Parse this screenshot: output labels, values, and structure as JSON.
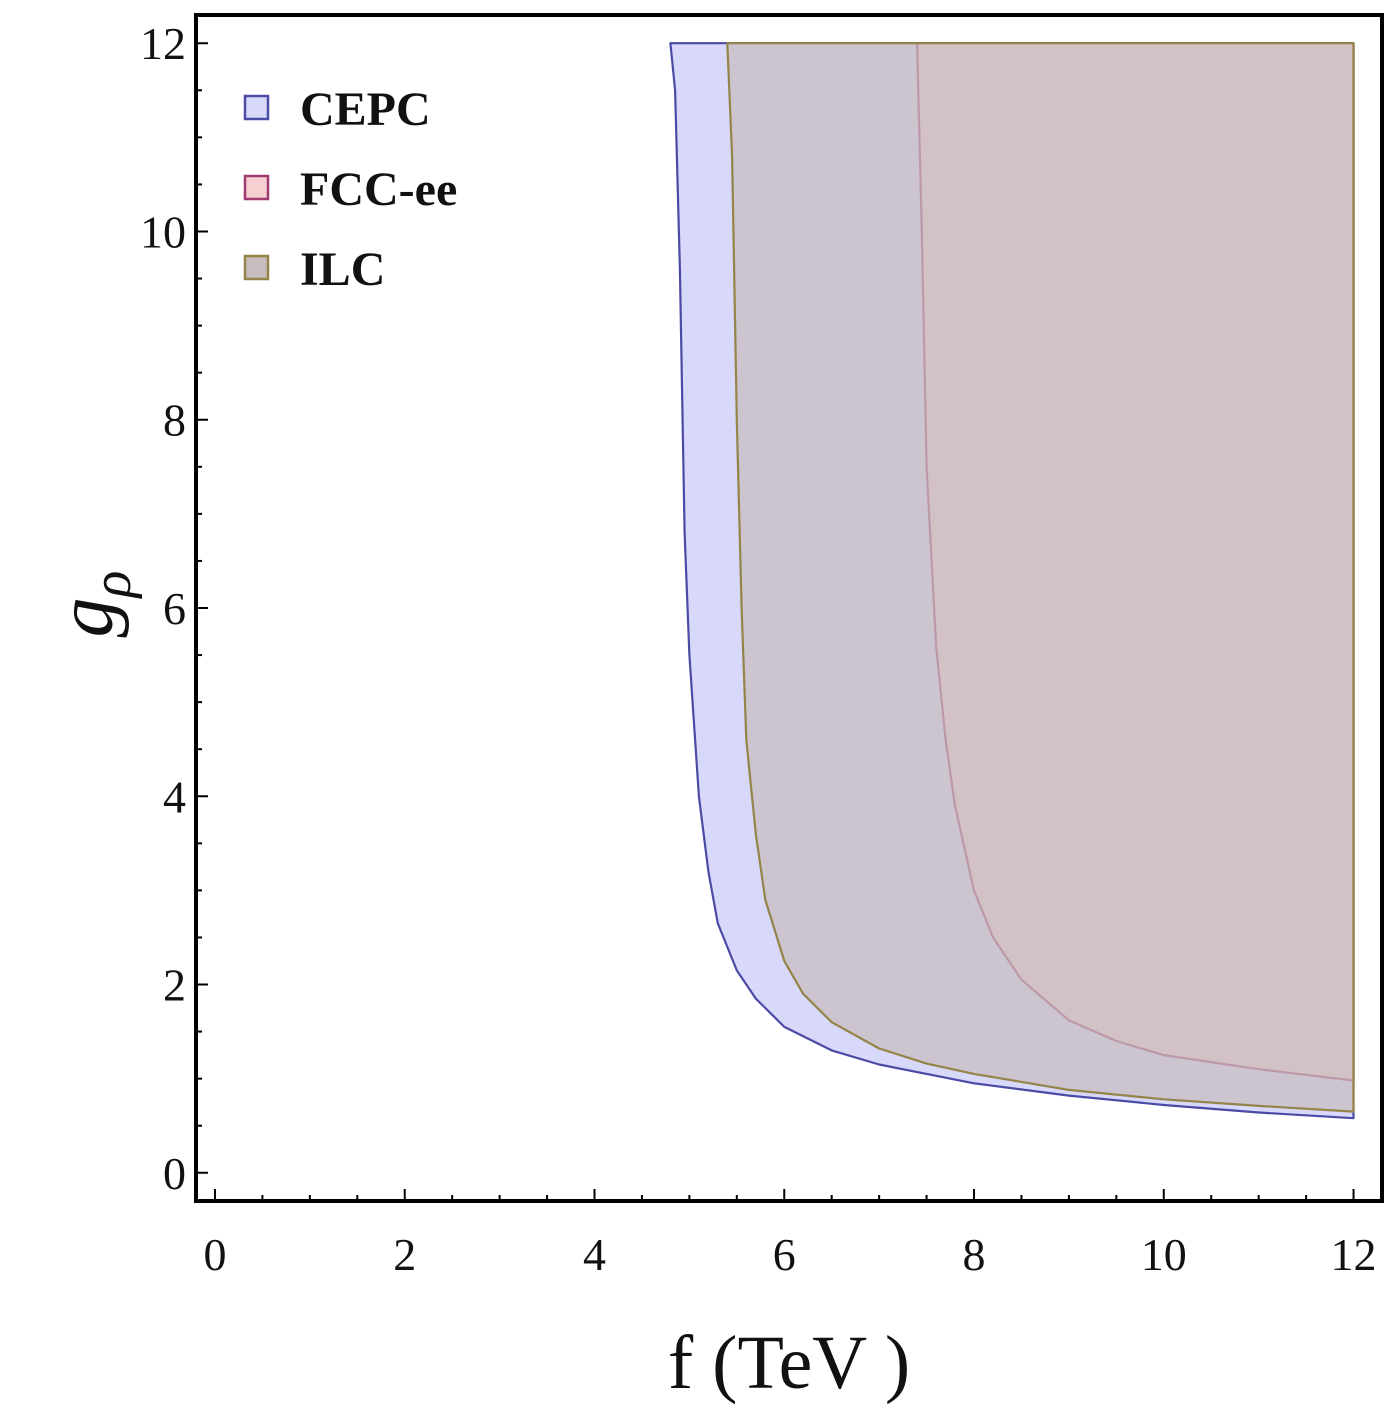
{
  "chart_data": {
    "type": "area",
    "xlabel": "f (TeV )",
    "ylabel_main": "g",
    "ylabel_sub": "ρ",
    "xlim": [
      -0.2,
      12.3
    ],
    "ylim": [
      -0.3,
      12.3
    ],
    "xticks": [
      "0",
      "2",
      "4",
      "6",
      "8",
      "10",
      "12"
    ],
    "yticks": [
      "0",
      "2",
      "4",
      "6",
      "8",
      "10",
      "12"
    ],
    "grid": false,
    "legend_position": "top-left",
    "series": [
      {
        "name": "CEPC",
        "fill": "#d7d8fa",
        "stroke": "#4b4ba6",
        "x": [
          4.8,
          4.85,
          4.9,
          4.95,
          5.0,
          5.1,
          5.2,
          5.3,
          5.5,
          5.7,
          6.0,
          6.5,
          7.0,
          8.0,
          9.0,
          10.0,
          11.0,
          12.0
        ],
        "y": [
          12.0,
          11.5,
          9.6,
          6.8,
          5.5,
          4.0,
          3.2,
          2.65,
          2.15,
          1.85,
          1.55,
          1.3,
          1.15,
          0.95,
          0.82,
          0.72,
          0.64,
          0.58
        ]
      },
      {
        "name": "FCC-ee",
        "fill": "#f6cfd0",
        "stroke": "#a03a73",
        "x": [
          7.4,
          7.45,
          7.5,
          7.6,
          7.7,
          7.8,
          8.0,
          8.2,
          8.5,
          9.0,
          9.5,
          10.0,
          11.0,
          12.0
        ],
        "y": [
          12.0,
          10.0,
          7.5,
          5.6,
          4.6,
          3.9,
          3.0,
          2.5,
          2.05,
          1.62,
          1.4,
          1.25,
          1.1,
          0.98
        ]
      },
      {
        "name": "ILC",
        "fill": "#c7bcbe",
        "stroke": "#958448",
        "x": [
          5.4,
          5.45,
          5.5,
          5.55,
          5.6,
          5.7,
          5.8,
          6.0,
          6.2,
          6.5,
          7.0,
          7.5,
          8.0,
          9.0,
          10.0,
          11.0,
          12.0
        ],
        "y": [
          12.0,
          10.8,
          8.0,
          6.0,
          4.6,
          3.6,
          2.9,
          2.25,
          1.9,
          1.6,
          1.32,
          1.16,
          1.05,
          0.88,
          0.78,
          0.71,
          0.65
        ]
      }
    ]
  }
}
